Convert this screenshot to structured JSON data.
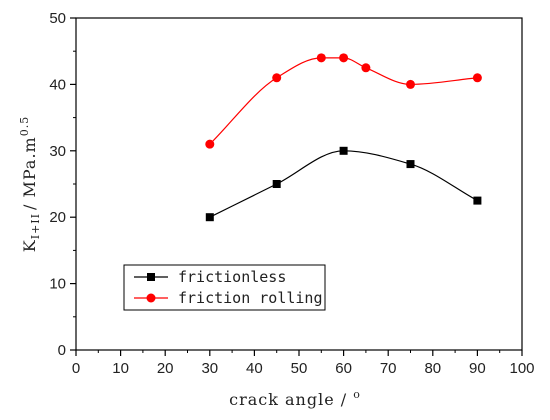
{
  "chart_data": {
    "type": "line",
    "title": "",
    "xlabel_main": "crack angle / ",
    "xlabel_sup": "o",
    "ylabel": {
      "base": "K",
      "subscript": "I+II",
      "mid": "/ MPa.m",
      "superscript": "0.5"
    },
    "xlim": [
      0,
      100
    ],
    "ylim": [
      0,
      50
    ],
    "x_ticks": [
      "0",
      "10",
      "20",
      "30",
      "40",
      "50",
      "60",
      "70",
      "80",
      "90",
      "100"
    ],
    "y_ticks": [
      "0",
      "10",
      "20",
      "30",
      "40",
      "50"
    ],
    "grid": false,
    "legend_position": "bottom-left",
    "series": [
      {
        "name": "frictionless",
        "color": "#000000",
        "marker": "square",
        "x": [
          30,
          45,
          60,
          75,
          90
        ],
        "y": [
          20,
          25,
          30,
          28,
          22.5
        ]
      },
      {
        "name": "friction rolling",
        "color": "#ff0000",
        "marker": "circle",
        "x": [
          30,
          45,
          55,
          60,
          65,
          75,
          90
        ],
        "y": [
          31,
          41,
          44,
          44,
          42.5,
          40,
          41
        ]
      }
    ]
  }
}
